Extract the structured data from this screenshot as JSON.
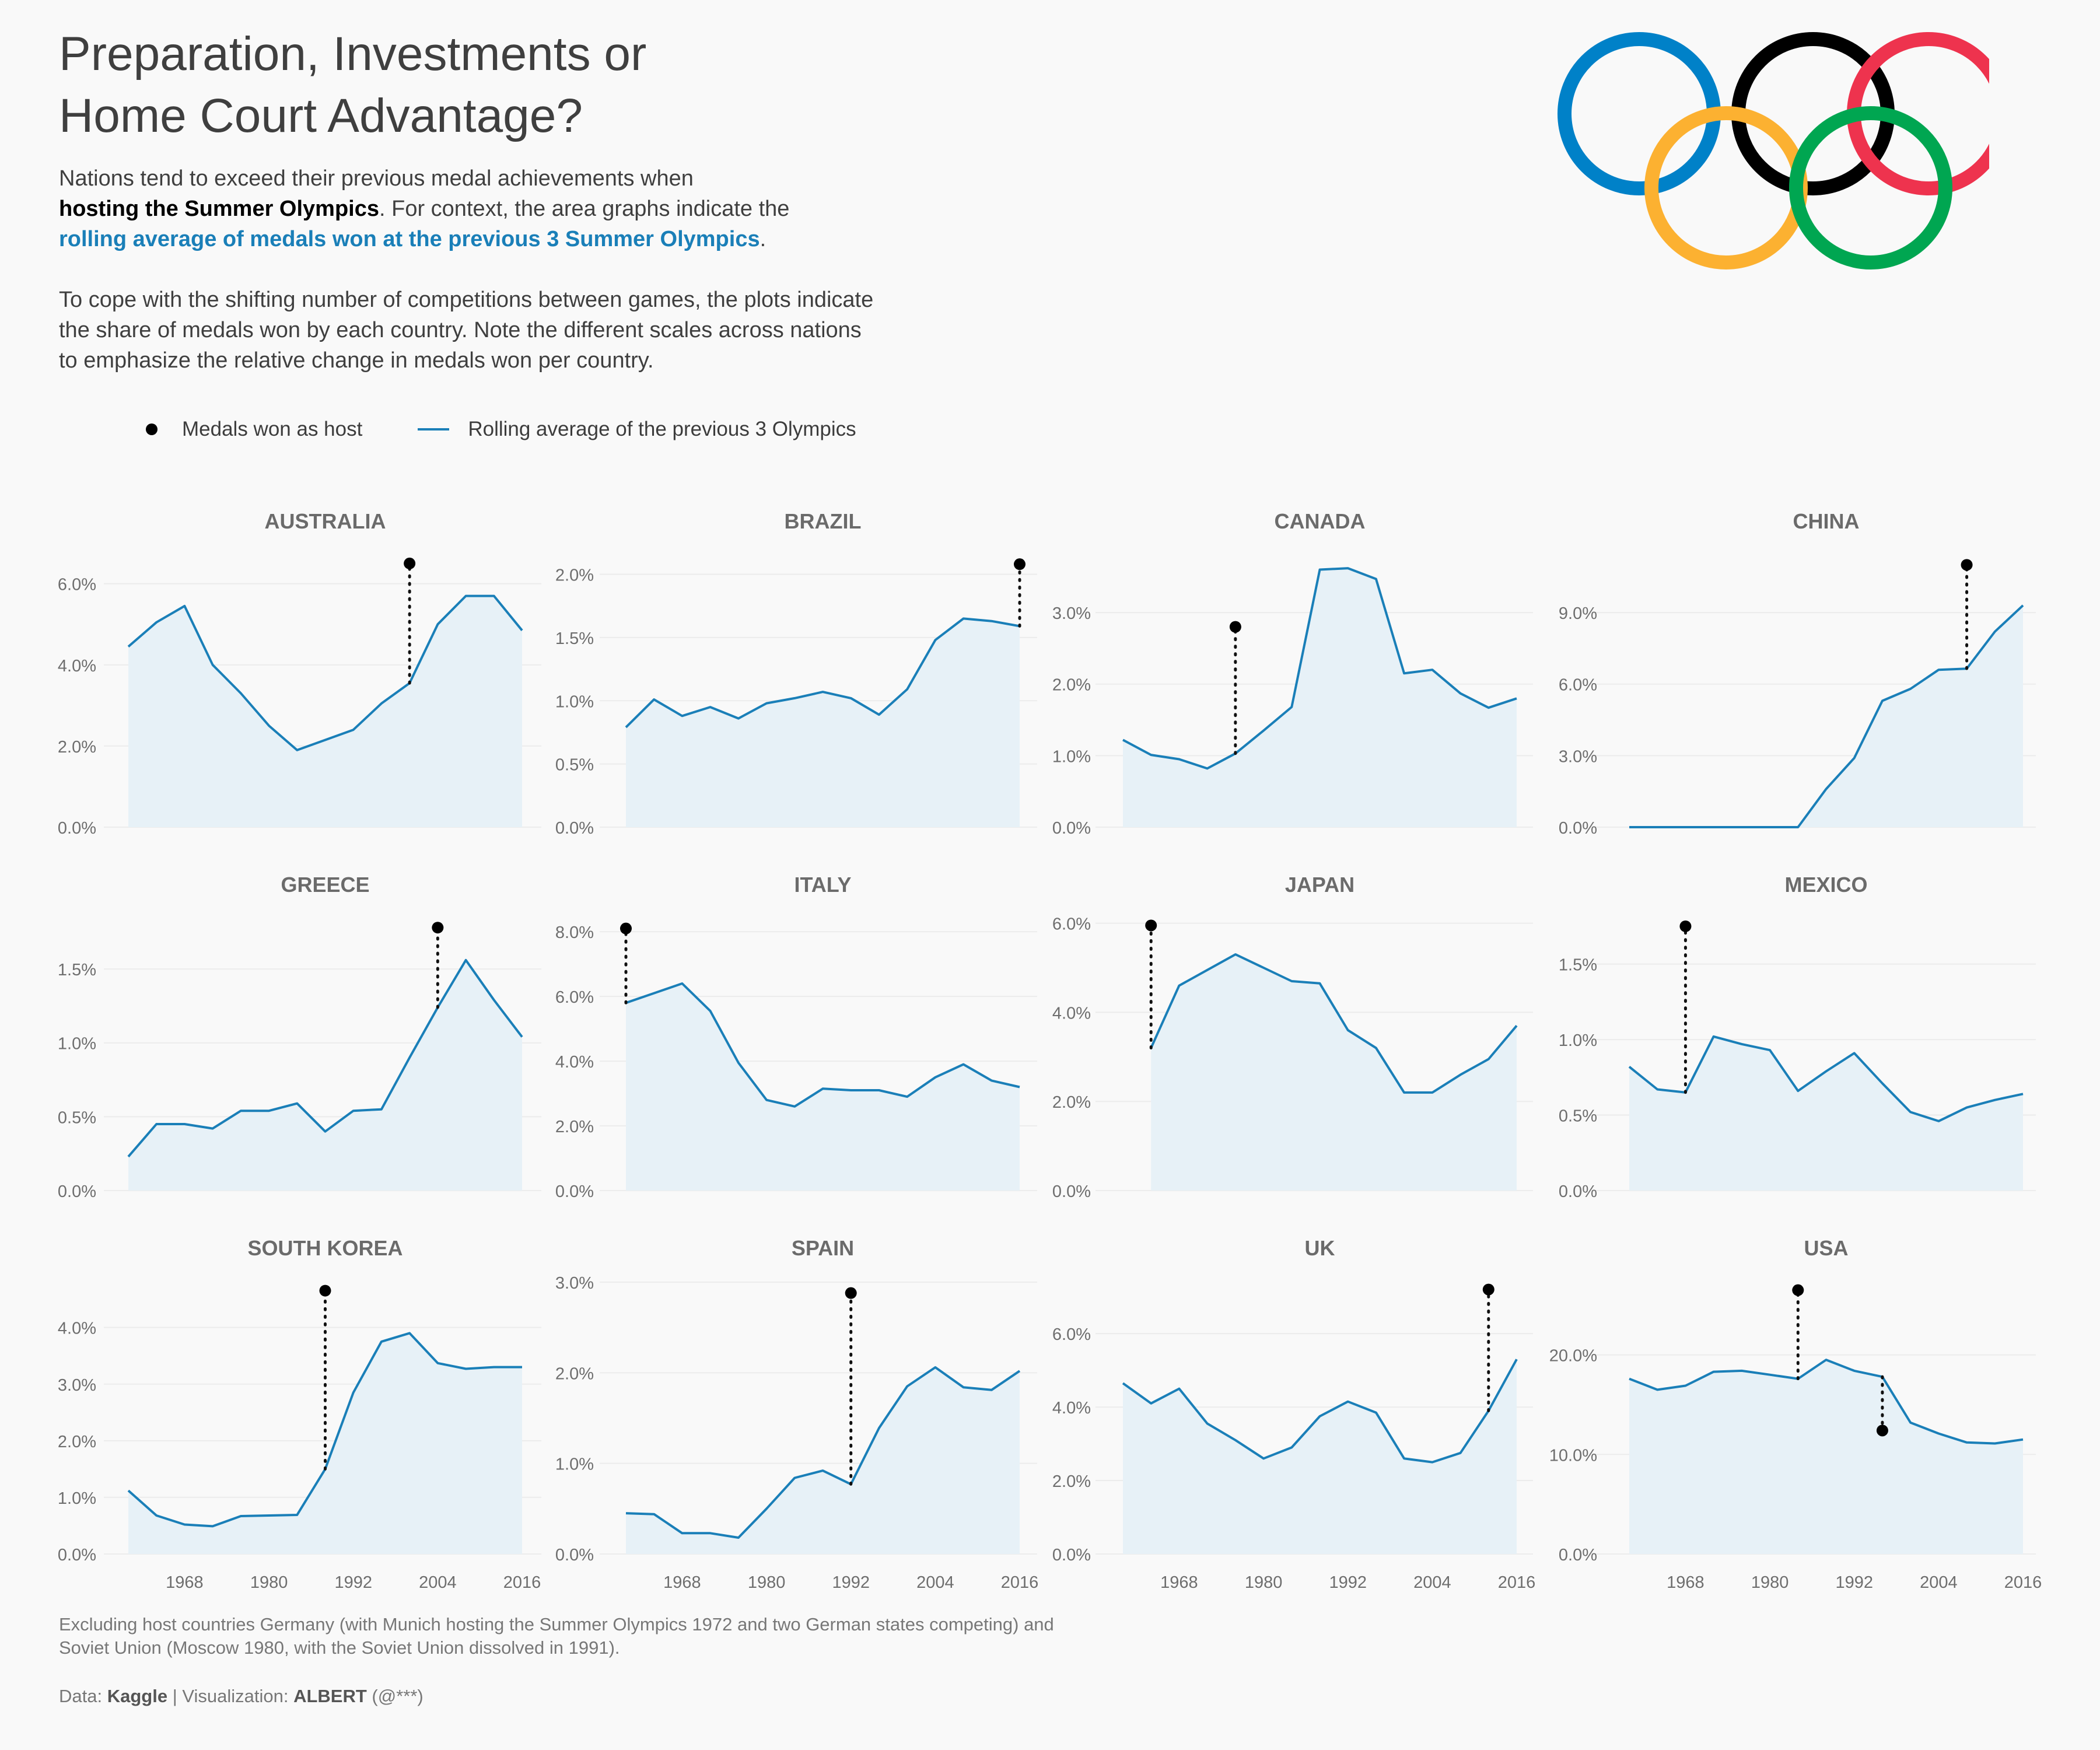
{
  "title_line1": "Preparation, Investments or",
  "title_line2": "Home Court Advantage?",
  "subtitle": {
    "p1_a": "Nations tend to exceed their previous medal achievements when",
    "p1_b_bold": "hosting the Summer Olympics",
    "p1_c": ". For context, the area graphs indicate the",
    "p1_d_blue": "rolling average of medals won at the previous 3 Summer Olympics",
    "p1_e": ".",
    "p2_l1": "To cope with the shifting number of competitions between games, the plots indicate",
    "p2_l2": "the share of medals won by each country. Note the different scales across nations",
    "p2_l3": "to emphasize the relative change in medals won per country."
  },
  "legend": {
    "host_label": "Medals won as host",
    "avg_label": "Rolling average of the previous 3 Olympics"
  },
  "colors": {
    "line": "#1a7fb8",
    "area": "#e7f1f7",
    "host_dot": "#000000",
    "rings": [
      "#0081c8",
      "#fcb131",
      "#000000",
      "#00a651",
      "#ee334e"
    ]
  },
  "footnote_l1": "Excluding host countries Germany (with Munich hosting the Summer Olympics 1972 and two German states competing) and",
  "footnote_l2": "Soviet Union (Moscow 1980, with the Soviet Union dissolved in 1991).",
  "credit": {
    "data_prefix": "Data: ",
    "data_source": "Kaggle",
    "viz_prefix": " | Visualization: ",
    "viz_author": "ALBERT",
    "viz_handle": " (@***)"
  },
  "chart_data": [
    {
      "type": "area",
      "title": "AUSTRALIA",
      "x": [
        1960,
        1964,
        1968,
        1972,
        1976,
        1980,
        1984,
        1988,
        1992,
        1996,
        2000,
        2004,
        2008,
        2012,
        2016
      ],
      "values": [
        4.45,
        5.05,
        5.45,
        4.0,
        3.3,
        2.5,
        1.9,
        2.15,
        2.4,
        3.05,
        3.55,
        5.0,
        5.7,
        5.7,
        4.85
      ],
      "host": {
        "year": 2000,
        "value": 6.5,
        "base": 3.55
      },
      "ylim": [
        0,
        6.7
      ],
      "ticks": [
        0,
        2,
        4,
        6
      ],
      "tick_labels": [
        "0.0%",
        "2.0%",
        "4.0%",
        "6.0%"
      ],
      "xticks": []
    },
    {
      "type": "area",
      "title": "BRAZIL",
      "x": [
        1960,
        1964,
        1968,
        1972,
        1976,
        1980,
        1984,
        1988,
        1992,
        1996,
        2000,
        2004,
        2008,
        2012,
        2016
      ],
      "values": [
        0.79,
        1.01,
        0.88,
        0.95,
        0.86,
        0.98,
        1.02,
        1.07,
        1.02,
        0.89,
        1.09,
        1.48,
        1.65,
        1.63,
        1.59
      ],
      "host": {
        "year": 2016,
        "value": 2.08,
        "base": 1.59
      },
      "ylim": [
        0,
        2.15
      ],
      "ticks": [
        0,
        0.5,
        1,
        1.5,
        2
      ],
      "tick_labels": [
        "0.0%",
        "0.5%",
        "1.0%",
        "1.5%",
        "2.0%"
      ],
      "xticks": []
    },
    {
      "type": "area",
      "title": "CANADA",
      "x": [
        1960,
        1964,
        1968,
        1972,
        1976,
        1980,
        1984,
        1988,
        1992,
        1996,
        2000,
        2004,
        2008,
        2012,
        2016
      ],
      "values": [
        1.22,
        1.01,
        0.95,
        0.82,
        1.03,
        1.35,
        1.68,
        3.6,
        3.62,
        3.47,
        2.15,
        2.2,
        1.87,
        1.67,
        1.8
      ],
      "host": {
        "year": 1976,
        "value": 2.8,
        "base": 1.03
      },
      "ylim": [
        0,
        3.8
      ],
      "ticks": [
        0,
        1,
        2,
        3
      ],
      "tick_labels": [
        "0.0%",
        "1.0%",
        "2.0%",
        "3.0%"
      ],
      "xticks": []
    },
    {
      "type": "area",
      "title": "CHINA",
      "x": [
        1960,
        1964,
        1968,
        1972,
        1976,
        1980,
        1984,
        1988,
        1992,
        1996,
        2000,
        2004,
        2008,
        2012,
        2016
      ],
      "values": [
        0,
        0,
        0,
        0,
        0,
        0,
        0,
        1.6,
        2.9,
        5.3,
        5.8,
        6.6,
        6.65,
        8.2,
        9.3
      ],
      "host": {
        "year": 2008,
        "value": 11.0,
        "base": 6.65
      },
      "ylim": [
        0,
        11.4
      ],
      "ticks": [
        0,
        3,
        6,
        9
      ],
      "tick_labels": [
        "0.0%",
        "3.0%",
        "6.0%",
        "9.0%"
      ],
      "xticks": []
    },
    {
      "type": "area",
      "title": "GREECE",
      "x": [
        1960,
        1964,
        1968,
        1972,
        1976,
        1980,
        1984,
        1988,
        1992,
        1996,
        2000,
        2004,
        2008,
        2012,
        2016
      ],
      "values": [
        0.23,
        0.45,
        0.45,
        0.42,
        0.54,
        0.54,
        0.59,
        0.4,
        0.54,
        0.55,
        0.9,
        1.24,
        1.56,
        1.29,
        1.04
      ],
      "host": {
        "year": 2004,
        "value": 1.78,
        "base": 1.24
      },
      "ylim": [
        0,
        1.84
      ],
      "ticks": [
        0,
        0.5,
        1,
        1.5
      ],
      "tick_labels": [
        "0.0%",
        "0.5%",
        "1.0%",
        "1.5%"
      ],
      "xticks": []
    },
    {
      "type": "area",
      "title": "ITALY",
      "x": [
        1960,
        1964,
        1968,
        1972,
        1976,
        1980,
        1984,
        1988,
        1992,
        1996,
        2000,
        2004,
        2008,
        2012,
        2016
      ],
      "values": [
        5.8,
        6.1,
        6.4,
        5.55,
        3.95,
        2.8,
        2.6,
        3.15,
        3.1,
        3.1,
        2.9,
        3.5,
        3.9,
        3.4,
        3.2
      ],
      "host": {
        "year": 1960,
        "value": 8.1,
        "base": 5.8
      },
      "ylim": [
        0,
        8.4
      ],
      "ticks": [
        0,
        2,
        4,
        6,
        8
      ],
      "tick_labels": [
        "0.0%",
        "2.0%",
        "4.0%",
        "6.0%",
        "8.0%"
      ],
      "xticks": []
    },
    {
      "type": "area",
      "title": "JAPAN",
      "x": [
        1964,
        1968,
        1972,
        1976,
        1980,
        1984,
        1988,
        1992,
        1996,
        2000,
        2004,
        2008,
        2012,
        2016
      ],
      "values": [
        3.2,
        4.6,
        4.95,
        5.3,
        5.0,
        4.7,
        4.65,
        3.6,
        3.2,
        2.2,
        2.2,
        2.6,
        2.95,
        3.7
      ],
      "host": {
        "year": 1964,
        "value": 5.95,
        "base": 3.2
      },
      "ylim": [
        0,
        6.1
      ],
      "ticks": [
        0,
        2,
        4,
        6
      ],
      "tick_labels": [
        "0.0%",
        "2.0%",
        "4.0%",
        "6.0%"
      ],
      "xticks": []
    },
    {
      "type": "area",
      "title": "MEXICO",
      "x": [
        1960,
        1964,
        1968,
        1972,
        1976,
        1980,
        1984,
        1988,
        1992,
        1996,
        2000,
        2004,
        2008,
        2012,
        2016
      ],
      "values": [
        0.82,
        0.67,
        0.65,
        1.02,
        0.97,
        0.93,
        0.66,
        0.79,
        0.91,
        0.71,
        0.52,
        0.46,
        0.55,
        0.6,
        0.64
      ],
      "host": {
        "year": 1968,
        "value": 1.75,
        "base": 0.65
      },
      "ylim": [
        0,
        1.8
      ],
      "ticks": [
        0,
        0.5,
        1,
        1.5
      ],
      "tick_labels": [
        "0.0%",
        "0.5%",
        "1.0%",
        "1.5%"
      ],
      "xticks": []
    },
    {
      "type": "area",
      "title": "SOUTH KOREA",
      "x": [
        1960,
        1964,
        1968,
        1972,
        1976,
        1980,
        1984,
        1988,
        1992,
        1996,
        2000,
        2004,
        2008,
        2012,
        2016
      ],
      "values": [
        1.12,
        0.68,
        0.52,
        0.49,
        0.67,
        0.68,
        0.69,
        1.5,
        2.85,
        3.75,
        3.9,
        3.37,
        3.27,
        3.3,
        3.3
      ],
      "host": {
        "year": 1988,
        "value": 4.65,
        "base": 1.5
      },
      "ylim": [
        0,
        4.8
      ],
      "ticks": [
        0,
        1,
        2,
        3,
        4
      ],
      "tick_labels": [
        "0.0%",
        "1.0%",
        "2.0%",
        "3.0%",
        "4.0%"
      ],
      "xticks": [
        "1968",
        "1980",
        "1992",
        "2004",
        "2016"
      ]
    },
    {
      "type": "area",
      "title": "SPAIN",
      "x": [
        1960,
        1964,
        1968,
        1972,
        1976,
        1980,
        1984,
        1988,
        1992,
        1996,
        2000,
        2004,
        2008,
        2012,
        2016
      ],
      "values": [
        0.45,
        0.44,
        0.23,
        0.23,
        0.18,
        0.5,
        0.84,
        0.92,
        0.77,
        1.39,
        1.85,
        2.06,
        1.84,
        1.81,
        2.02
      ],
      "host": {
        "year": 1992,
        "value": 2.88,
        "base": 0.77
      },
      "ylim": [
        0,
        3.0
      ],
      "ticks": [
        0,
        1,
        2,
        3
      ],
      "tick_labels": [
        "0.0%",
        "1.0%",
        "2.0%",
        "3.0%"
      ],
      "xticks": [
        "1968",
        "1980",
        "1992",
        "2004",
        "2016"
      ]
    },
    {
      "type": "area",
      "title": "UK",
      "x": [
        1960,
        1964,
        1968,
        1972,
        1976,
        1980,
        1984,
        1988,
        1992,
        1996,
        2000,
        2004,
        2008,
        2012,
        2016
      ],
      "values": [
        4.65,
        4.1,
        4.5,
        3.55,
        3.1,
        2.6,
        2.9,
        3.75,
        4.15,
        3.85,
        2.6,
        2.5,
        2.75,
        3.9,
        5.3
      ],
      "host": {
        "year": 2012,
        "value": 7.2,
        "base": 3.9
      },
      "ylim": [
        0,
        7.4
      ],
      "ticks": [
        0,
        2,
        4,
        6
      ],
      "tick_labels": [
        "0.0%",
        "2.0%",
        "4.0%",
        "6.0%"
      ],
      "xticks": [
        "1968",
        "1980",
        "1992",
        "2004",
        "2016"
      ]
    },
    {
      "type": "area",
      "title": "USA",
      "x": [
        1960,
        1964,
        1968,
        1972,
        1976,
        1980,
        1984,
        1988,
        1992,
        1996,
        2000,
        2004,
        2008,
        2012,
        2016
      ],
      "values": [
        17.6,
        16.5,
        16.9,
        18.3,
        18.4,
        18.0,
        17.6,
        19.5,
        18.4,
        17.8,
        13.2,
        12.1,
        11.2,
        11.1,
        11.5
      ],
      "host": [
        {
          "year": 1984,
          "value": 26.5,
          "base": 17.6
        },
        {
          "year": 1996,
          "value": 12.4,
          "base": 17.8
        }
      ],
      "ylim": [
        0,
        27.3
      ],
      "ticks": [
        0,
        10,
        20
      ],
      "tick_labels": [
        "0.0%",
        "10.0%",
        "20.0%"
      ],
      "xticks": [
        "1968",
        "1980",
        "1992",
        "2004",
        "2016"
      ]
    }
  ]
}
